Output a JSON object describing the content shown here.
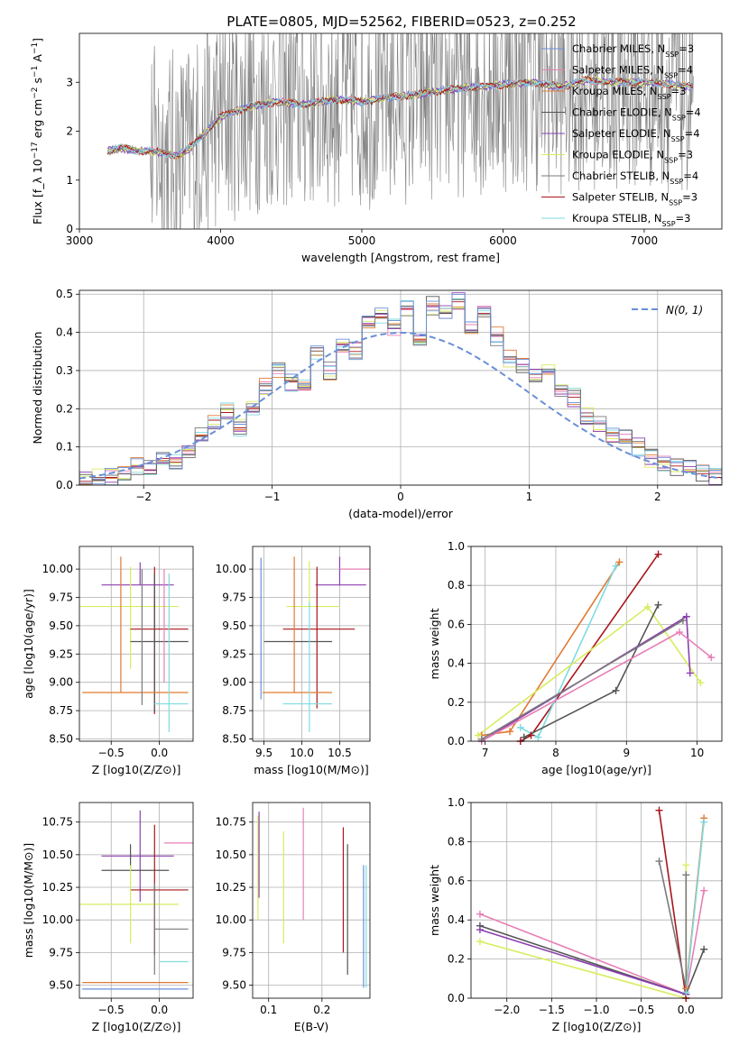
{
  "figure_title": "PLATE=0805, MJD=52562, FIBERID=0523, z=0.252",
  "colors": {
    "chabrier_miles": "#6a8fd8",
    "salpeter_miles": "#e87fb6",
    "kroupa_miles": "#e07a33",
    "chabrier_elodie": "#555555",
    "salpeter_elodie": "#8b3fb0",
    "kroupa_elodie": "#d9ec5e",
    "chabrier_stelib": "#7a7a7a",
    "salpeter_stelib": "#a8151b",
    "kroupa_stelib": "#7fdbe0",
    "data": "#808080"
  },
  "chart_data": [
    {
      "id": "spectrum",
      "type": "line",
      "title": "PLATE=0805, MJD=52562, FIBERID=0523, z=0.252",
      "xlabel": "wavelength [Angstrom, rest frame]",
      "ylabel": "Flux [f_λ 10^-17 erg cm^-2 s^-1 A^-1]",
      "xlim": [
        3000,
        7550
      ],
      "ylim": [
        0,
        4.0
      ],
      "xticks": [
        3000,
        4000,
        5000,
        6000,
        7000
      ],
      "yticks": [
        0,
        1,
        2,
        3
      ],
      "grid": false,
      "legend_position": "top-right",
      "legend": [
        {
          "label": "Chabrier MILES, N",
          "sub": "SSP",
          "tail": "=3"
        },
        {
          "label": "Salpeter MILES, N",
          "sub": "SSP",
          "tail": "=4"
        },
        {
          "label": "Kroupa MILES, N",
          "sub": "SSP",
          "tail": "=3"
        },
        {
          "label": "Chabrier ELODIE, N",
          "sub": "SSP",
          "tail": "=4"
        },
        {
          "label": "Salpeter ELODIE, N",
          "sub": "SSP",
          "tail": "=4"
        },
        {
          "label": "Kroupa ELODIE, N",
          "sub": "SSP",
          "tail": "=3"
        },
        {
          "label": "Chabrier STELIB, N",
          "sub": "SSP",
          "tail": "=4"
        },
        {
          "label": "Salpeter STELIB, N",
          "sub": "SSP",
          "tail": "=3"
        },
        {
          "label": "Kroupa STELIB, N",
          "sub": "SSP",
          "tail": "=3"
        }
      ],
      "model_continuum": {
        "wavelength": [
          3200,
          3300,
          3400,
          3500,
          3600,
          3700,
          3800,
          3900,
          4000,
          4200,
          4400,
          4600,
          4800,
          5000,
          5200,
          5400,
          5600,
          5800,
          6000,
          6200,
          6400,
          6600,
          6800,
          7000,
          7200,
          7350
        ],
        "flux": [
          1.6,
          1.65,
          1.6,
          1.6,
          1.55,
          1.5,
          1.7,
          2.0,
          2.3,
          2.5,
          2.6,
          2.55,
          2.65,
          2.6,
          2.7,
          2.75,
          2.85,
          2.9,
          2.95,
          3.0,
          2.9,
          3.05,
          3.0,
          3.0,
          2.95,
          2.9
        ]
      },
      "data_noise_start": 3500
    },
    {
      "id": "residuals",
      "type": "histogram",
      "xlabel": "(data-model)/error",
      "ylabel": "Normed distribution",
      "xlim": [
        -2.5,
        2.5
      ],
      "ylim": [
        0,
        0.51
      ],
      "xticks": [
        -2,
        -1,
        0,
        1,
        2
      ],
      "yticks": [
        0.0,
        0.1,
        0.2,
        0.3,
        0.4,
        0.5
      ],
      "grid": true,
      "legend_position": "top-right",
      "legend": [
        {
          "label": "N(0, 1)"
        }
      ],
      "bin_width": 0.1,
      "bin_start": -2.5,
      "hist_values": [
        0.01,
        0.02,
        0.02,
        0.03,
        0.05,
        0.04,
        0.07,
        0.06,
        0.09,
        0.13,
        0.17,
        0.19,
        0.15,
        0.2,
        0.26,
        0.3,
        0.27,
        0.25,
        0.34,
        0.3,
        0.37,
        0.35,
        0.42,
        0.44,
        0.41,
        0.46,
        0.38,
        0.47,
        0.45,
        0.48,
        0.42,
        0.45,
        0.39,
        0.33,
        0.31,
        0.29,
        0.3,
        0.25,
        0.23,
        0.18,
        0.16,
        0.13,
        0.12,
        0.1,
        0.07,
        0.06,
        0.05,
        0.04,
        0.03,
        0.02
      ]
    },
    {
      "id": "age_vs_Z",
      "type": "errorbar",
      "xlabel": "Z [log10(Z/Z⊙)]",
      "ylabel": "age [log10(age/yr)]",
      "xlim": [
        -0.83,
        0.35
      ],
      "ylim": [
        8.48,
        10.2
      ],
      "xticks": [
        -0.5,
        0.0
      ],
      "yticks": [
        8.5,
        8.75,
        9.0,
        9.25,
        9.5,
        9.75,
        10.0
      ],
      "grid": true,
      "points": [
        {
          "series": "salpeter_elodie",
          "x": -0.2,
          "xerr": [
            0.4,
            0.35
          ],
          "y": 9.86,
          "yerr": [
            0.0,
            0.2
          ]
        },
        {
          "series": "kroupa_elodie",
          "x": -0.3,
          "xerr": [
            0.55,
            0.5
          ],
          "y": 9.67,
          "yerr": [
            0.55,
            0.35
          ]
        },
        {
          "series": "salpeter_stelib",
          "x": -0.05,
          "xerr": [
            0.25,
            0.35
          ],
          "y": 9.47,
          "yerr": [
            0.75,
            0.55
          ]
        },
        {
          "series": "chabrier_elodie",
          "x": -0.05,
          "xerr": [
            0.25,
            0.35
          ],
          "y": 9.36,
          "yerr": [
            0.62,
            0.6
          ]
        },
        {
          "series": "kroupa_miles",
          "x": -0.4,
          "xerr": [
            0.4,
            0.7
          ],
          "y": 8.91,
          "yerr": [
            0.0,
            1.2
          ]
        },
        {
          "series": "kroupa_stelib",
          "x": 0.1,
          "xerr": [
            0.15,
            0.2
          ],
          "y": 8.81,
          "yerr": [
            0.25,
            1.15
          ]
        },
        {
          "series": "salpeter_miles",
          "x": 0.05,
          "xerr": [
            0.0,
            0.0
          ],
          "y": 9.6,
          "yerr": [
            0.6,
            0.4
          ]
        },
        {
          "series": "chabrier_stelib",
          "x": -0.18,
          "xerr": [
            0.0,
            0.0
          ],
          "y": 9.6,
          "yerr": [
            0.8,
            0.4
          ]
        }
      ]
    },
    {
      "id": "age_vs_mass",
      "type": "errorbar",
      "xlabel": "mass [log10(M/M⊙)]",
      "ylabel": "",
      "xlim": [
        9.35,
        10.9
      ],
      "ylim": [
        8.48,
        10.2
      ],
      "xticks": [
        9.5,
        10.0,
        10.5
      ],
      "yticks": [
        8.5,
        8.75,
        9.0,
        9.25,
        9.5,
        9.75,
        10.0
      ],
      "grid": true,
      "points": [
        {
          "series": "salpeter_elodie",
          "x": 10.5,
          "xerr": [
            0.32,
            0.35
          ],
          "y": 9.86,
          "yerr": [
            0.0,
            0.25
          ]
        },
        {
          "series": "kroupa_elodie",
          "x": 10.1,
          "xerr": [
            0.3,
            0.4
          ],
          "y": 9.67,
          "yerr": [
            0.0,
            0.4
          ]
        },
        {
          "series": "salpeter_stelib",
          "x": 10.2,
          "xerr": [
            0.45,
            0.5
          ],
          "y": 9.47,
          "yerr": [
            0.7,
            0.55
          ]
        },
        {
          "series": "chabrier_elodie",
          "x": 9.95,
          "xerr": [
            0.45,
            0.45
          ],
          "y": 9.36,
          "yerr": [
            0.0,
            0.0
          ]
        },
        {
          "series": "kroupa_miles",
          "x": 9.9,
          "xerr": [
            0.42,
            0.5
          ],
          "y": 8.91,
          "yerr": [
            0.0,
            1.2
          ]
        },
        {
          "series": "kroupa_stelib",
          "x": 10.1,
          "xerr": [
            0.35,
            0.3
          ],
          "y": 8.81,
          "yerr": [
            0.25,
            0.9
          ]
        },
        {
          "series": "salpeter_miles",
          "x": 10.5,
          "xerr": [
            0.0,
            0.5
          ],
          "y": 10.0,
          "yerr": [
            0.0,
            0.0
          ]
        },
        {
          "series": "chabrier_miles",
          "x": 9.46,
          "xerr": [
            0.0,
            0.0
          ],
          "y": 9.5,
          "yerr": [
            0.65,
            0.6
          ]
        }
      ]
    },
    {
      "id": "weight_vs_age",
      "type": "line",
      "xlabel": "age [log10(age/yr)]",
      "ylabel": "mass weight",
      "xlim": [
        6.8,
        10.35
      ],
      "ylim": [
        0,
        1.0
      ],
      "xticks": [
        7,
        8,
        9,
        10
      ],
      "yticks": [
        0.0,
        0.2,
        0.4,
        0.6,
        0.8,
        1.0
      ],
      "grid": true,
      "series": [
        {
          "name": "kroupa_miles",
          "x": [
            6.95,
            7.35,
            8.9
          ],
          "y": [
            0.03,
            0.05,
            0.92
          ]
        },
        {
          "name": "salpeter_stelib",
          "x": [
            7.5,
            7.65,
            9.45
          ],
          "y": [
            0.0,
            0.03,
            0.96
          ]
        },
        {
          "name": "kroupa_stelib",
          "x": [
            7.5,
            7.75,
            8.85
          ],
          "y": [
            0.07,
            0.02,
            0.9
          ]
        },
        {
          "name": "kroupa_elodie",
          "x": [
            6.9,
            9.3,
            10.05
          ],
          "y": [
            0.03,
            0.69,
            0.3
          ]
        },
        {
          "name": "chabrier_elodie",
          "x": [
            7.55,
            8.85,
            9.45
          ],
          "y": [
            0.02,
            0.26,
            0.7
          ]
        },
        {
          "name": "salpeter_elodie",
          "x": [
            6.95,
            9.85,
            9.9
          ],
          "y": [
            0.0,
            0.64,
            0.35
          ]
        },
        {
          "name": "salpeter_miles",
          "x": [
            6.95,
            9.75,
            10.2
          ],
          "y": [
            0.0,
            0.56,
            0.43
          ]
        },
        {
          "name": "chabrier_stelib",
          "x": [
            6.95,
            9.8
          ],
          "y": [
            0.01,
            0.62
          ]
        }
      ]
    },
    {
      "id": "mass_vs_Z",
      "type": "errorbar",
      "xlabel": "Z [log10(Z/Z⊙)]",
      "ylabel": "mass [log10(M/M⊙)]",
      "xlim": [
        -0.83,
        0.35
      ],
      "ylim": [
        9.4,
        10.9
      ],
      "xticks": [
        -0.5,
        0.0
      ],
      "yticks": [
        9.5,
        9.75,
        10.0,
        10.25,
        10.5,
        10.75
      ],
      "grid": true,
      "points": [
        {
          "series": "salpeter_miles",
          "x": 0.05,
          "xerr": [
            0.0,
            0.3
          ],
          "y": 10.59,
          "yerr": [
            0.0,
            0.0
          ]
        },
        {
          "series": "salpeter_elodie",
          "x": -0.2,
          "xerr": [
            0.4,
            0.35
          ],
          "y": 10.49,
          "yerr": [
            0.35,
            0.35
          ]
        },
        {
          "series": "chabrier_elodie",
          "x": -0.3,
          "xerr": [
            0.3,
            0.4
          ],
          "y": 10.38,
          "yerr": [
            0.0,
            0.2
          ]
        },
        {
          "series": "salpeter_stelib",
          "x": -0.05,
          "xerr": [
            0.25,
            0.35
          ],
          "y": 10.23,
          "yerr": [
            0.5,
            0.5
          ]
        },
        {
          "series": "kroupa_elodie",
          "x": -0.3,
          "xerr": [
            0.55,
            0.5
          ],
          "y": 10.12,
          "yerr": [
            0.3,
            0.3
          ]
        },
        {
          "series": "chabrier_stelib",
          "x": -0.05,
          "xerr": [
            0.0,
            0.35
          ],
          "y": 9.93,
          "yerr": [
            0.35,
            0.35
          ]
        },
        {
          "series": "kroupa_stelib",
          "x": 0.1,
          "xerr": [
            0.1,
            0.2
          ],
          "y": 9.68,
          "yerr": [
            0.0,
            0.0
          ]
        },
        {
          "series": "kroupa_miles",
          "x": -0.3,
          "xerr": [
            0.5,
            0.6
          ],
          "y": 9.52,
          "yerr": [
            0.0,
            0.0
          ]
        },
        {
          "series": "chabrier_miles",
          "x": -0.3,
          "xerr": [
            0.5,
            0.6
          ],
          "y": 9.47,
          "yerr": [
            0.0,
            0.0
          ]
        }
      ]
    },
    {
      "id": "mass_vs_ebv",
      "type": "errorbar",
      "xlabel": "E(B-V)",
      "ylabel": "",
      "xlim": [
        0.07,
        0.29
      ],
      "ylim": [
        9.4,
        10.9
      ],
      "xticks": [
        0.1,
        0.2
      ],
      "yticks": [
        9.5,
        9.75,
        10.0,
        10.25,
        10.5,
        10.75
      ],
      "grid": true,
      "points": [
        {
          "series": "salpeter_elodie",
          "x": 0.082,
          "xerr": [
            0.0,
            0.0
          ],
          "y": 10.5,
          "yerr": [
            0.33,
            0.33
          ]
        },
        {
          "series": "kroupa_elodie",
          "x": 0.08,
          "xerr": [
            0.0,
            0.0
          ],
          "y": 10.4,
          "yerr": [
            0.4,
            0.4
          ]
        },
        {
          "series": "kroupa_elodie",
          "x": 0.128,
          "xerr": [
            0.0,
            0.0
          ],
          "y": 10.25,
          "yerr": [
            0.43,
            0.43
          ]
        },
        {
          "series": "salpeter_miles",
          "x": 0.165,
          "xerr": [
            0.0,
            0.0
          ],
          "y": 10.43,
          "yerr": [
            0.43,
            0.43
          ]
        },
        {
          "series": "salpeter_stelib",
          "x": 0.24,
          "xerr": [
            0.0,
            0.0
          ],
          "y": 10.23,
          "yerr": [
            0.48,
            0.48
          ]
        },
        {
          "series": "chabrier_elodie",
          "x": 0.248,
          "xerr": [
            0.0,
            0.0
          ],
          "y": 10.08,
          "yerr": [
            0.5,
            0.5
          ]
        },
        {
          "series": "chabrier_miles",
          "x": 0.278,
          "xerr": [
            0.0,
            0.0
          ],
          "y": 9.95,
          "yerr": [
            0.47,
            0.47
          ]
        },
        {
          "series": "kroupa_stelib",
          "x": 0.283,
          "xerr": [
            0.0,
            0.0
          ],
          "y": 9.95,
          "yerr": [
            0.47,
            0.47
          ]
        }
      ]
    },
    {
      "id": "weight_vs_Z",
      "type": "line",
      "xlabel": "Z [log10(Z/Z⊙)]",
      "ylabel": "mass weight",
      "xlim": [
        -2.4,
        0.4
      ],
      "ylim": [
        0,
        1.0
      ],
      "xticks": [
        -2.0,
        -1.5,
        -1.0,
        -0.5,
        0.0
      ],
      "yticks": [
        0.0,
        0.2,
        0.4,
        0.6,
        0.8,
        1.0
      ],
      "grid": true,
      "series": [
        {
          "name": "salpeter_miles",
          "x": [
            -2.3,
            0.0,
            0.2
          ],
          "y": [
            0.43,
            0.02,
            0.55
          ]
        },
        {
          "name": "chabrier_elodie",
          "x": [
            -2.3,
            0.0,
            0.2
          ],
          "y": [
            0.37,
            0.02,
            0.25
          ]
        },
        {
          "name": "salpeter_elodie",
          "x": [
            -2.3,
            0.0
          ],
          "y": [
            0.35,
            0.02
          ]
        },
        {
          "name": "kroupa_elodie",
          "x": [
            -2.3,
            0.0,
            0.0
          ],
          "y": [
            0.29,
            0.0,
            0.68
          ]
        },
        {
          "name": "salpeter_stelib",
          "x": [
            -0.3,
            0.0
          ],
          "y": [
            0.96,
            0.0
          ]
        },
        {
          "name": "chabrier_stelib",
          "x": [
            -0.3,
            0.0,
            0.0
          ],
          "y": [
            0.7,
            0.05,
            0.63
          ]
        },
        {
          "name": "kroupa_miles",
          "x": [
            0.0,
            0.2
          ],
          "y": [
            0.05,
            0.92
          ]
        },
        {
          "name": "kroupa_stelib",
          "x": [
            0.0,
            0.2
          ],
          "y": [
            0.03,
            0.9
          ]
        }
      ]
    }
  ]
}
